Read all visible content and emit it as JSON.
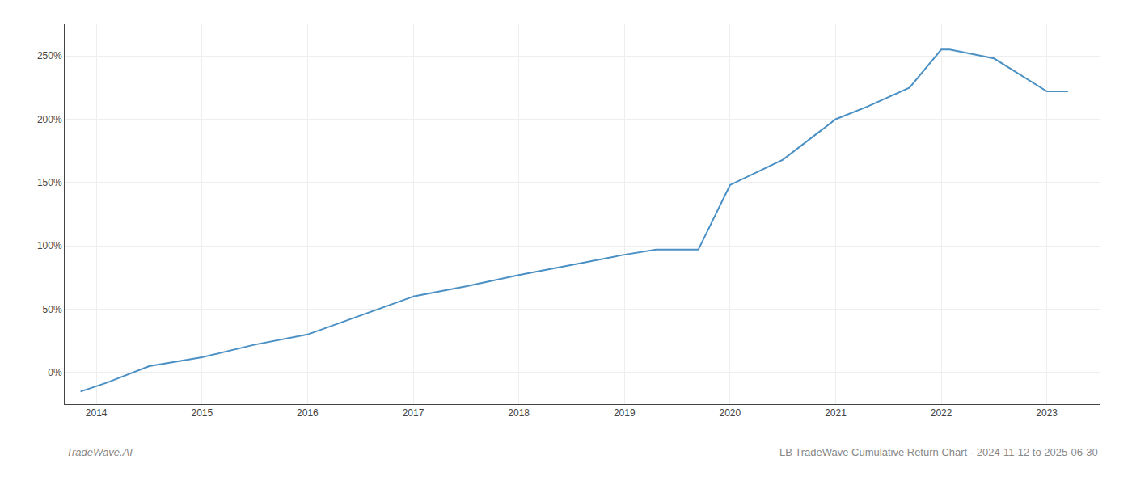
{
  "chart_data": {
    "type": "line",
    "title": "LB TradeWave Cumulative Return Chart - 2024-11-12 to 2025-06-30",
    "annotations": [
      "TradeWave.AI"
    ],
    "x": [
      2013.85,
      2014.1,
      2014.5,
      2015.0,
      2015.5,
      2016.0,
      2016.5,
      2017.0,
      2017.5,
      2018.0,
      2018.5,
      2019.0,
      2019.3,
      2019.7,
      2020.0,
      2020.5,
      2021.0,
      2021.3,
      2021.7,
      2022.0,
      2022.08,
      2022.5,
      2023.0,
      2023.2
    ],
    "values": [
      -15,
      -8,
      5,
      12,
      22,
      30,
      45,
      60,
      68,
      77,
      85,
      93,
      97,
      97,
      148,
      168,
      200,
      210,
      225,
      255,
      255,
      248,
      222,
      222
    ],
    "color": "#4a90c4",
    "xlim": [
      2013.7,
      2023.5
    ],
    "ylim": [
      -25,
      275
    ],
    "xticks": [
      2014,
      2015,
      2016,
      2017,
      2018,
      2019,
      2020,
      2021,
      2022,
      2023
    ],
    "yticks": [
      {
        "value": 0,
        "label": "0%"
      },
      {
        "value": 50,
        "label": "50%"
      },
      {
        "value": 100,
        "label": "100%"
      },
      {
        "value": 150,
        "label": "150%"
      },
      {
        "value": 200,
        "label": "200%"
      },
      {
        "value": 250,
        "label": "250%"
      }
    ],
    "grid": true
  }
}
